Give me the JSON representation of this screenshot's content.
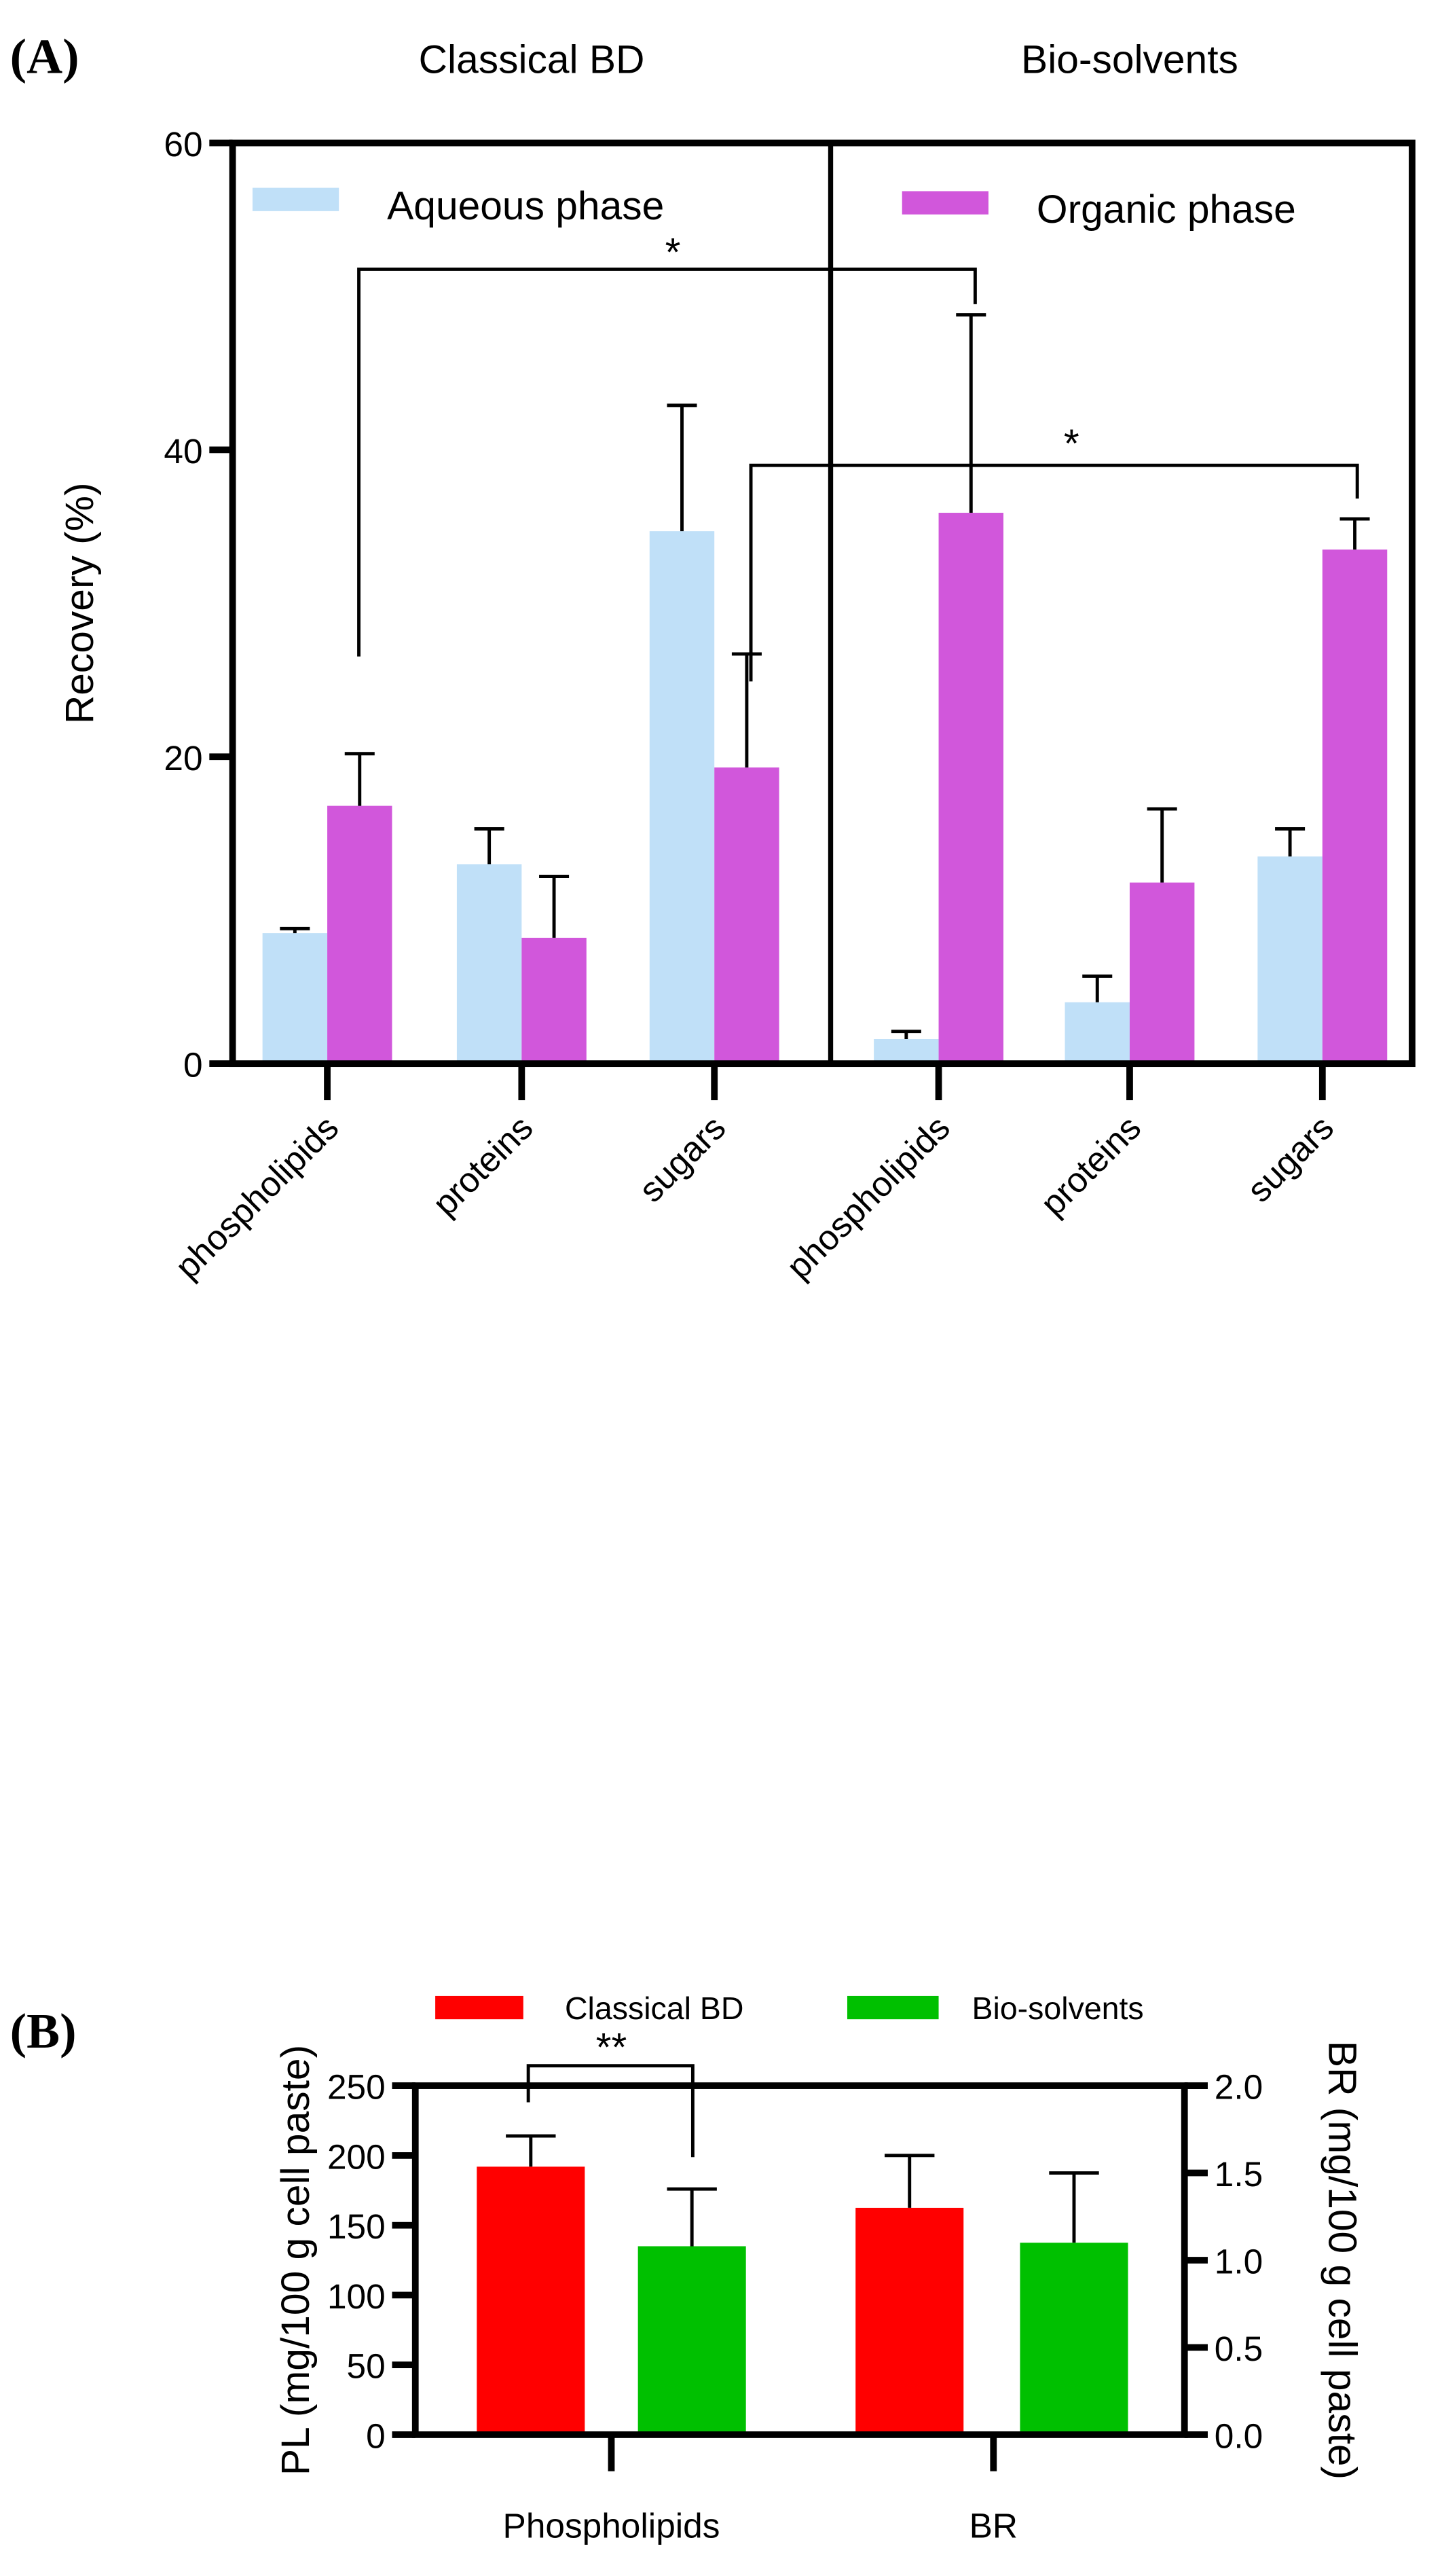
{
  "chart_data": [
    {
      "panel": "(A)",
      "type": "bar",
      "group_titles": [
        "Classical BD",
        "Bio-solvents"
      ],
      "categories": [
        "phospholipids",
        "proteins",
        "sugars",
        "phospholipids",
        "proteins",
        "sugars"
      ],
      "ylabel": "Recovery (%)",
      "ylim": [
        0,
        60
      ],
      "yticks": [
        "0",
        "20",
        "40",
        "60"
      ],
      "legend": [
        "Aqueous phase",
        "Organic phase"
      ],
      "series": [
        {
          "name": "Aqueous phase",
          "color": "#c0e0f8",
          "values": [
            8.5,
            13.0,
            34.7,
            1.6,
            4.0,
            13.5
          ],
          "error_upper": [
            8.8,
            15.3,
            42.9,
            2.1,
            5.7,
            15.3
          ]
        },
        {
          "name": "Organic phase",
          "color": "#d157db",
          "values": [
            16.8,
            8.2,
            19.3,
            35.9,
            11.8,
            33.5
          ],
          "error_upper": [
            20.2,
            12.2,
            26.7,
            48.8,
            16.6,
            35.5
          ]
        }
      ],
      "significance": [
        {
          "label": "*",
          "from": "Classical BD phospholipids organic",
          "to": "Bio-solvents phospholipids organic"
        },
        {
          "label": "*",
          "from": "Classical BD sugars organic",
          "to": "Bio-solvents sugars organic"
        }
      ]
    },
    {
      "panel": "(B)",
      "type": "bar",
      "categories": [
        "Phospholipids",
        "BR"
      ],
      "ylabel": "PL (mg/100 g cell paste)",
      "ylabel_right": "BR (mg/100 g cell paste)",
      "ylim": [
        0,
        250
      ],
      "ylim_right": [
        0,
        2.0
      ],
      "yticks": [
        "0",
        "50",
        "100",
        "150",
        "200",
        "250"
      ],
      "yticks_right": [
        "0.0",
        "0.5",
        "1.0",
        "1.5",
        "2.0"
      ],
      "legend": [
        "Classical BD",
        "Bio-solvents"
      ],
      "legend_position": "top",
      "series": [
        {
          "name": "Classical BD",
          "color": "#ff0000",
          "values": [
            192,
            1.3
          ],
          "error_upper": [
            214,
            1.6
          ]
        },
        {
          "name": "Bio-solvents",
          "color": "#00c000",
          "values": [
            135,
            1.1
          ],
          "error_upper": [
            176,
            1.5
          ]
        }
      ],
      "significance": [
        {
          "label": "**",
          "between": "Phospholipids Classical BD vs Bio-solvents"
        }
      ]
    }
  ]
}
